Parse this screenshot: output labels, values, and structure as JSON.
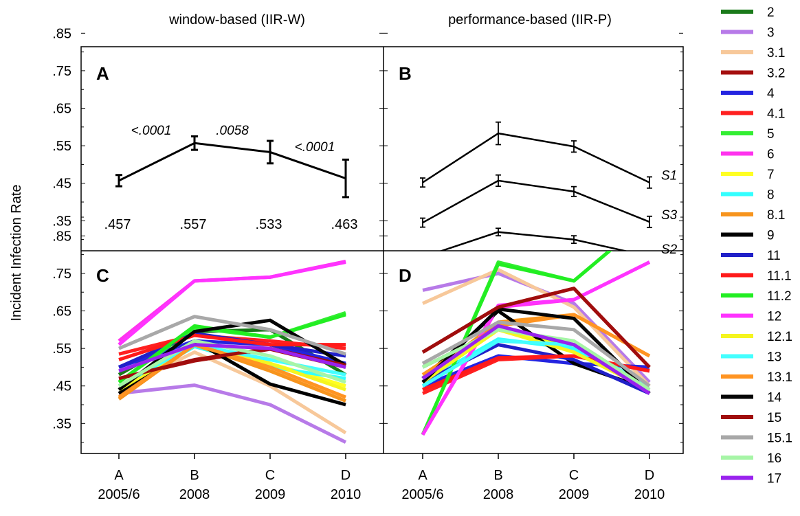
{
  "ylabel": "Incident Infection Rate",
  "column_titles": [
    "window-based (IIR-W)",
    "performance-based (IIR-P)"
  ],
  "x_ticks": [
    {
      "letter": "A",
      "year": "2005/6"
    },
    {
      "letter": "B",
      "year": "2008"
    },
    {
      "letter": "C",
      "year": "2009"
    },
    {
      "letter": "D",
      "year": "2010"
    }
  ],
  "y_ticks": [
    ".85",
    ".75",
    ".65",
    ".55",
    ".45",
    ".35"
  ],
  "panels": {
    "A": {
      "label": "A"
    },
    "B": {
      "label": "B"
    },
    "C": {
      "label": "C"
    },
    "D": {
      "label": "D"
    }
  },
  "legend": [
    {
      "name": "2",
      "color": "#1a7a1a"
    },
    {
      "name": "3",
      "color": "#b77ae8"
    },
    {
      "name": "3.1",
      "color": "#f7c89a"
    },
    {
      "name": "3.2",
      "color": "#a50f0f"
    },
    {
      "name": "4",
      "color": "#2424e0"
    },
    {
      "name": "4.1",
      "color": "#ff2020"
    },
    {
      "name": "5",
      "color": "#33ee33"
    },
    {
      "name": "6",
      "color": "#ff33ee"
    },
    {
      "name": "7",
      "color": "#ffff22"
    },
    {
      "name": "8",
      "color": "#33ffff"
    },
    {
      "name": "8.1",
      "color": "#f7941d"
    },
    {
      "name": "9",
      "color": "#000000"
    },
    {
      "name": "11",
      "color": "#2020c8"
    },
    {
      "name": "11.1",
      "color": "#ff1a1a"
    },
    {
      "name": "11.2",
      "color": "#22ee22"
    },
    {
      "name": "12",
      "color": "#ff33ff"
    },
    {
      "name": "12.1",
      "color": "#f5f520"
    },
    {
      "name": "13",
      "color": "#44ffff"
    },
    {
      "name": "13.1",
      "color": "#ff9422"
    },
    {
      "name": "14",
      "color": "#050505"
    },
    {
      "name": "15",
      "color": "#a00d0d"
    },
    {
      "name": "15.1",
      "color": "#a8a8a8"
    },
    {
      "name": "16",
      "color": "#a6f5a6"
    },
    {
      "name": "17",
      "color": "#9922ee"
    }
  ],
  "chart_data": [
    {
      "panel": "A",
      "type": "line",
      "categories": [
        "A 2005/6",
        "B 2008",
        "C 2009",
        "D 2010"
      ],
      "ylim": [
        0.27,
        0.97
      ],
      "values": [
        0.457,
        0.557,
        0.533,
        0.463
      ],
      "errors": [
        0.015,
        0.018,
        0.03,
        0.05
      ],
      "value_labels": [
        ".457",
        ".557",
        ".533",
        ".463"
      ],
      "p_values": [
        "<.0001",
        ".0058",
        "<.0001"
      ]
    },
    {
      "panel": "B",
      "type": "line",
      "categories": [
        "A 2005/6",
        "B 2008",
        "C 2009",
        "D 2010"
      ],
      "ylim": [
        0.27,
        0.97
      ],
      "series": [
        {
          "name": "S1",
          "values": [
            0.452,
            0.583,
            0.548,
            0.452
          ],
          "errors": [
            0.012,
            0.03,
            0.015,
            0.015
          ]
        },
        {
          "name": "S3",
          "values": [
            0.345,
            0.457,
            0.428,
            0.347
          ],
          "errors": [
            0.012,
            0.015,
            0.013,
            0.015
          ]
        },
        {
          "name": "S2",
          "values": [
            0.253,
            0.32,
            0.3,
            0.255
          ],
          "errors": [
            0.008,
            0.01,
            0.01,
            0.008
          ]
        }
      ]
    },
    {
      "panel": "C",
      "type": "line",
      "categories": [
        "A 2005/6",
        "B 2008",
        "C 2009",
        "D 2010"
      ],
      "ylim": [
        0.27,
        0.97
      ],
      "series": [
        {
          "name": "2",
          "values": [
            0.48,
            0.595,
            0.6,
            0.48
          ]
        },
        {
          "name": "3",
          "values": [
            0.43,
            0.452,
            0.4,
            0.3
          ]
        },
        {
          "name": "3.1",
          "values": [
            0.44,
            0.54,
            0.45,
            0.325
          ]
        },
        {
          "name": "3.2",
          "values": [
            0.47,
            0.517,
            0.548,
            0.5
          ]
        },
        {
          "name": "4",
          "values": [
            0.5,
            0.57,
            0.56,
            0.51
          ]
        },
        {
          "name": "4.1",
          "values": [
            0.535,
            0.585,
            0.57,
            0.55
          ]
        },
        {
          "name": "5",
          "values": [
            0.46,
            0.605,
            0.58,
            0.645
          ]
        },
        {
          "name": "6",
          "values": [
            0.57,
            0.73,
            0.74,
            0.782
          ]
        },
        {
          "name": "7",
          "values": [
            0.45,
            0.56,
            0.51,
            0.45
          ]
        },
        {
          "name": "8",
          "values": [
            0.44,
            0.555,
            0.5,
            0.47
          ]
        },
        {
          "name": "8.1",
          "values": [
            0.415,
            0.56,
            0.49,
            0.41
          ]
        },
        {
          "name": "9",
          "values": [
            0.43,
            0.57,
            0.455,
            0.4
          ]
        },
        {
          "name": "11",
          "values": [
            0.5,
            0.59,
            0.56,
            0.53
          ]
        },
        {
          "name": "11.1",
          "values": [
            0.52,
            0.585,
            0.56,
            0.56
          ]
        },
        {
          "name": "11.2",
          "values": [
            0.46,
            0.61,
            0.58,
            0.64
          ]
        },
        {
          "name": "12",
          "values": [
            0.56,
            0.73,
            0.74,
            0.78
          ]
        },
        {
          "name": "12.1",
          "values": [
            0.44,
            0.56,
            0.51,
            0.44
          ]
        },
        {
          "name": "13",
          "values": [
            0.45,
            0.56,
            0.52,
            0.48
          ]
        },
        {
          "name": "13.1",
          "values": [
            0.42,
            0.56,
            0.5,
            0.42
          ]
        },
        {
          "name": "14",
          "values": [
            0.44,
            0.595,
            0.625,
            0.505
          ]
        },
        {
          "name": "15",
          "values": [
            0.47,
            0.52,
            0.55,
            0.505
          ]
        },
        {
          "name": "15.1",
          "values": [
            0.55,
            0.635,
            0.6,
            0.535
          ]
        },
        {
          "name": "16",
          "values": [
            0.45,
            0.57,
            0.53,
            0.46
          ]
        },
        {
          "name": "17",
          "values": [
            0.49,
            0.56,
            0.55,
            0.5
          ]
        }
      ]
    },
    {
      "panel": "D",
      "type": "line",
      "categories": [
        "A 2005/6",
        "B 2008",
        "C 2009",
        "D 2010"
      ],
      "ylim": [
        0.27,
        0.97
      ],
      "series": [
        {
          "name": "2",
          "values": [
            0.5,
            0.6,
            0.56,
            0.44
          ]
        },
        {
          "name": "3",
          "values": [
            0.705,
            0.75,
            0.67,
            0.46
          ]
        },
        {
          "name": "3.1",
          "values": [
            0.67,
            0.76,
            0.66,
            0.45
          ]
        },
        {
          "name": "3.2",
          "values": [
            0.54,
            0.66,
            0.71,
            0.5
          ]
        },
        {
          "name": "4",
          "values": [
            0.45,
            0.53,
            0.51,
            0.5
          ]
        },
        {
          "name": "4.1",
          "values": [
            0.43,
            0.52,
            0.53,
            0.49
          ]
        },
        {
          "name": "5",
          "values": [
            0.32,
            0.78,
            0.73,
            0.9
          ]
        },
        {
          "name": "6",
          "values": [
            0.32,
            0.66,
            0.68,
            0.78
          ]
        },
        {
          "name": "7",
          "values": [
            0.47,
            0.6,
            0.55,
            0.45
          ]
        },
        {
          "name": "8",
          "values": [
            0.46,
            0.575,
            0.55,
            0.45
          ]
        },
        {
          "name": "8.1",
          "values": [
            0.47,
            0.62,
            0.64,
            0.53
          ]
        },
        {
          "name": "9",
          "values": [
            0.47,
            0.65,
            0.51,
            0.44
          ]
        },
        {
          "name": "11",
          "values": [
            0.46,
            0.56,
            0.52,
            0.43
          ]
        },
        {
          "name": "11.1",
          "values": [
            0.44,
            0.525,
            0.53,
            0.49
          ]
        },
        {
          "name": "11.2",
          "values": [
            0.32,
            0.775,
            0.73,
            0.9
          ]
        },
        {
          "name": "12",
          "values": [
            0.32,
            0.665,
            0.68,
            0.78
          ]
        },
        {
          "name": "12.1",
          "values": [
            0.46,
            0.6,
            0.54,
            0.44
          ]
        },
        {
          "name": "13",
          "values": [
            0.45,
            0.57,
            0.56,
            0.45
          ]
        },
        {
          "name": "13.1",
          "values": [
            0.48,
            0.61,
            0.64,
            0.53
          ]
        },
        {
          "name": "14",
          "values": [
            0.46,
            0.655,
            0.63,
            0.43
          ]
        },
        {
          "name": "15",
          "values": [
            0.54,
            0.66,
            0.71,
            0.5
          ]
        },
        {
          "name": "15.1",
          "values": [
            0.51,
            0.62,
            0.6,
            0.45
          ]
        },
        {
          "name": "16",
          "values": [
            0.5,
            0.6,
            0.57,
            0.44
          ]
        },
        {
          "name": "17",
          "values": [
            0.47,
            0.61,
            0.56,
            0.43
          ]
        }
      ]
    }
  ]
}
